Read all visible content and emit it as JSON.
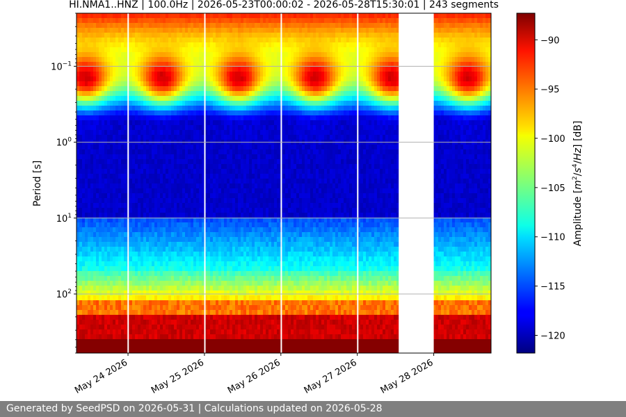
{
  "chart_data": {
    "type": "heatmap",
    "title": "HI.NMA1..HNZ | 100.0Hz | 2026-05-23T00:00:02 - 2026-05-28T15:30:01 | 243 segments",
    "ylabel": "Period [s]",
    "y_scale": "log",
    "y_inverted": true,
    "y_range": [
      0.02,
      600
    ],
    "y_ticks": [
      {
        "value": 0.1,
        "base": "10",
        "exp": "−1"
      },
      {
        "value": 1,
        "base": "10",
        "exp": "0"
      },
      {
        "value": 10,
        "base": "10",
        "exp": "1"
      },
      {
        "value": 100,
        "base": "10",
        "exp": "2"
      }
    ],
    "x_range_days": [
      "2026-05-23T07:50",
      "2026-05-28T18:00"
    ],
    "x_ticks": [
      {
        "label": "May 24 2026",
        "date": "2026-05-24"
      },
      {
        "label": "May 25 2026",
        "date": "2026-05-25"
      },
      {
        "label": "May 26 2026",
        "date": "2026-05-26"
      },
      {
        "label": "May 27 2026",
        "date": "2026-05-27"
      },
      {
        "label": "May 28 2026",
        "date": "2026-05-28"
      }
    ],
    "gaps": [
      {
        "start": "2026-05-23T23:50",
        "end": "2026-05-24T00:05"
      },
      {
        "start": "2026-05-24T23:55",
        "end": "2026-05-25T00:05"
      },
      {
        "start": "2026-05-25T23:55",
        "end": "2026-05-26T00:05"
      },
      {
        "start": "2026-05-26T23:55",
        "end": "2026-05-27T00:05"
      },
      {
        "start": "2026-05-27T13:00",
        "end": "2026-05-28T00:00"
      }
    ],
    "colorbar": {
      "label": "Amplitude [m²/s⁴/Hz] [dB]",
      "label_parts": [
        "Amplitude [",
        "m",
        "2",
        "/",
        "s",
        "4",
        "/",
        "Hz",
        "] [dB]"
      ],
      "range": [
        -121.8,
        -87.3
      ],
      "ticks": [
        -90,
        -95,
        -100,
        -105,
        -110,
        -115,
        -120
      ],
      "tick_labels": [
        "−90",
        "−95",
        "−100",
        "−105",
        "−110",
        "−115",
        "−120"
      ],
      "colormap": "jet"
    },
    "grid": true
  },
  "footer": "Generated by SeedPSD on 2026-05-31 | Calculations updated on 2026-05-28"
}
